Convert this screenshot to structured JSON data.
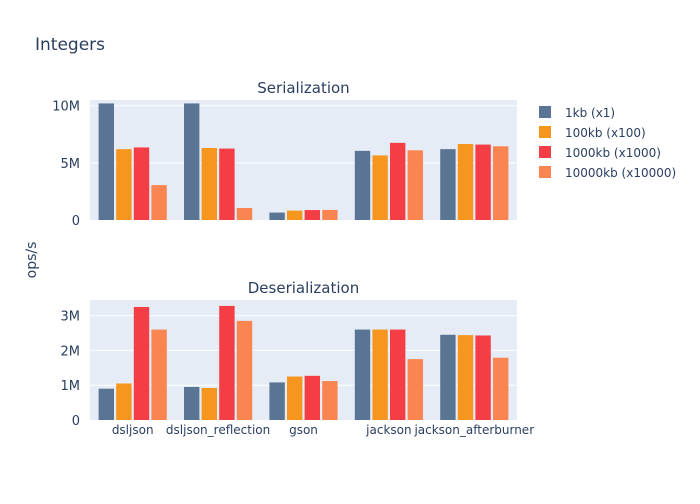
{
  "title": "Integers",
  "ylabel": "ops/s",
  "colors": [
    "#5a7593",
    "#f7961f",
    "#f53d46",
    "#fb8551"
  ],
  "chart_data": {
    "type": "bar",
    "title": "Integers",
    "ylabel": "ops/s",
    "legend_position": "top-right",
    "grid": true,
    "categories": [
      "dsljson",
      "dsljson_reflection",
      "gson",
      "jackson",
      "jackson_afterburner"
    ],
    "series_names": [
      "1kb (x1)",
      "100kb (x100)",
      "1000kb (x1000)",
      "10000kb (x10000)"
    ],
    "subplots": [
      {
        "title": "Serialization",
        "ylim": [
          0,
          10500000
        ],
        "ticks": [
          0,
          5000000,
          10000000
        ],
        "tick_labels": [
          "0",
          "5M",
          "10M"
        ],
        "series": [
          {
            "name": "1kb (x1)",
            "values": [
              10200000,
              10200000,
              650000,
              6050000,
              6200000
            ]
          },
          {
            "name": "100kb (x100)",
            "values": [
              6200000,
              6300000,
              820000,
              5650000,
              6650000
            ]
          },
          {
            "name": "1000kb (x1000)",
            "values": [
              6350000,
              6250000,
              870000,
              6750000,
              6600000
            ]
          },
          {
            "name": "10000kb (x10000)",
            "values": [
              3050000,
              1050000,
              880000,
              6100000,
              6450000
            ]
          }
        ]
      },
      {
        "title": "Deserialization",
        "ylim": [
          0,
          3450000
        ],
        "ticks": [
          0,
          1000000,
          2000000,
          3000000
        ],
        "tick_labels": [
          "0",
          "1M",
          "2M",
          "3M"
        ],
        "series": [
          {
            "name": "1kb (x1)",
            "values": [
              900000,
              950000,
              1080000,
              2600000,
              2450000
            ]
          },
          {
            "name": "100kb (x100)",
            "values": [
              1050000,
              920000,
              1250000,
              2600000,
              2440000
            ]
          },
          {
            "name": "1000kb (x1000)",
            "values": [
              3250000,
              3280000,
              1270000,
              2600000,
              2430000
            ]
          },
          {
            "name": "10000kb (x10000)",
            "values": [
              2600000,
              2850000,
              1120000,
              1750000,
              1790000
            ]
          }
        ]
      }
    ]
  }
}
